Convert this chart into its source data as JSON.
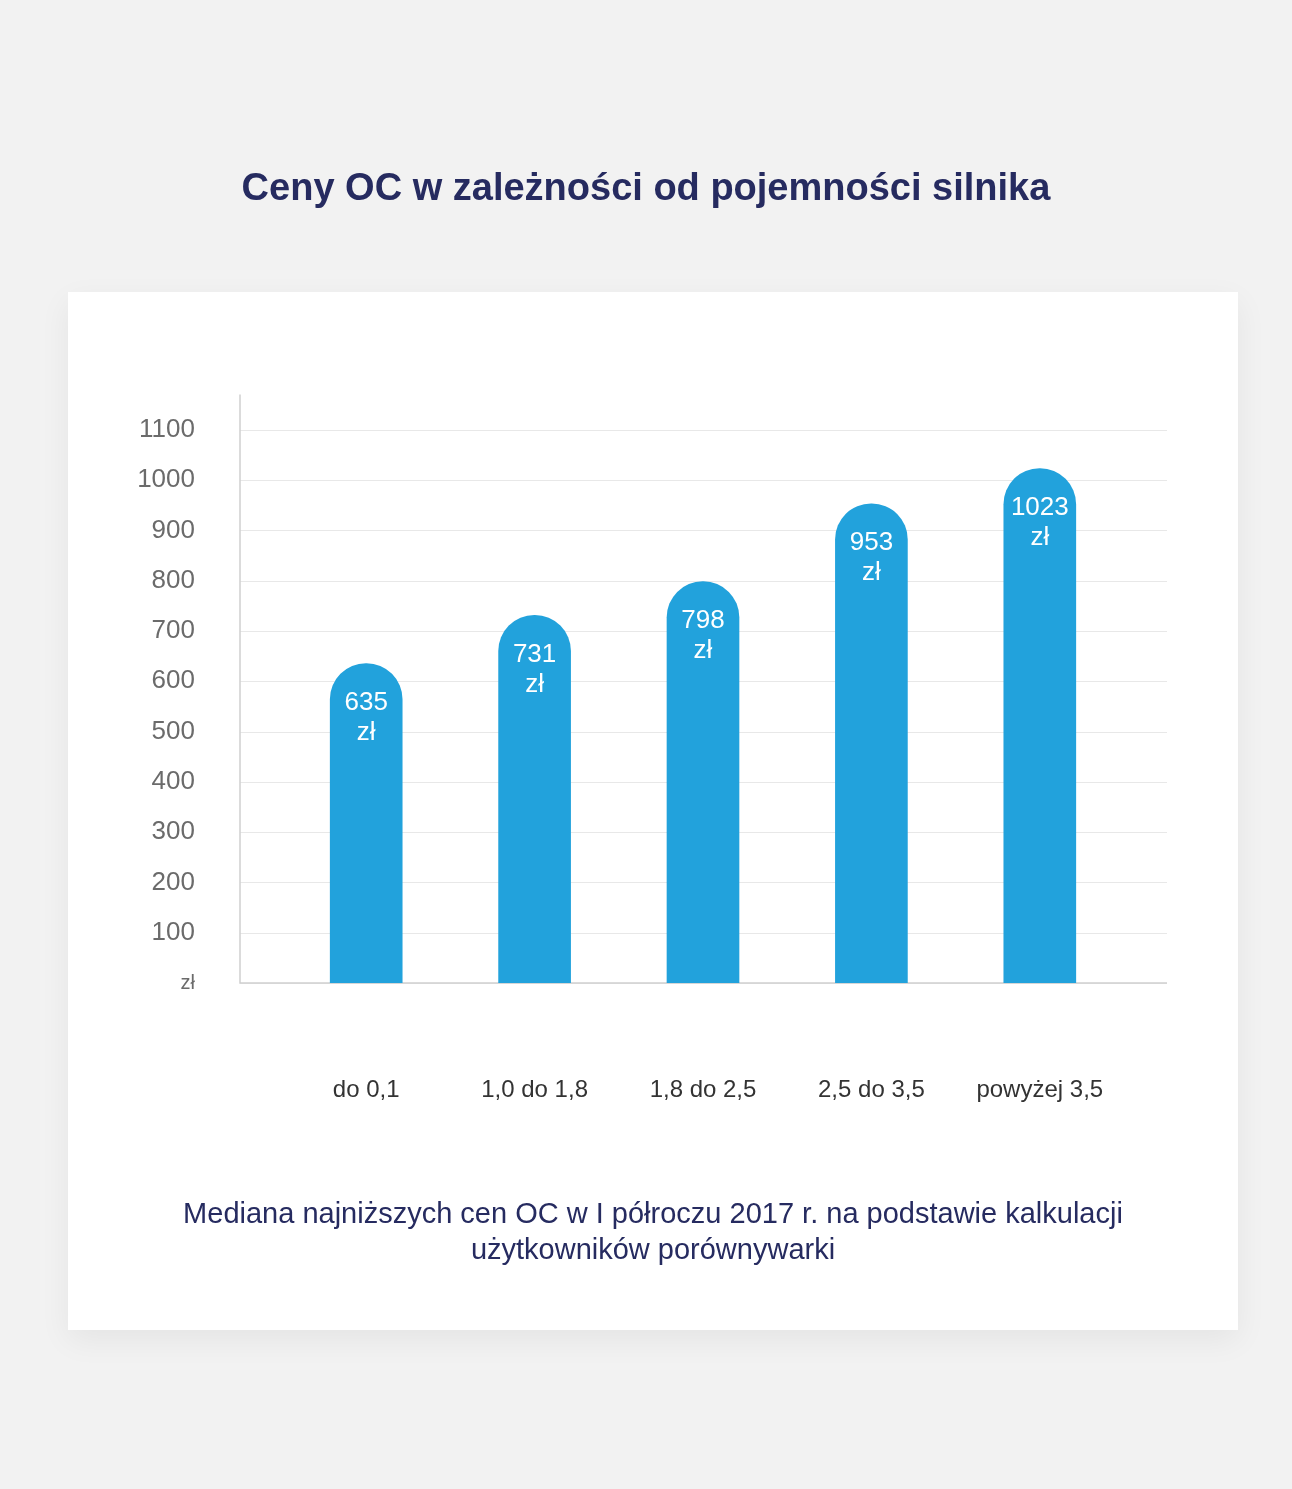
{
  "chart_data": {
    "type": "bar",
    "title": "Ceny OC w zależności od pojemności silnika",
    "categories": [
      "do 0,1",
      "1,0 do 1,8",
      "1,8 do 2,5",
      "2,5 do 3,5",
      "powyżej 3,5"
    ],
    "values": [
      635,
      731,
      798,
      953,
      1023
    ],
    "color": "#22a2dc",
    "value_labels": [
      "635 zł",
      "731 zł",
      "798 zł",
      "953 zł",
      "1023 zł"
    ],
    "ylim": [
      0,
      1170
    ],
    "yticks": [
      {
        "value": 0,
        "label": "zł"
      },
      100,
      200,
      300,
      400,
      500,
      600,
      700,
      800,
      900,
      1000,
      1100
    ],
    "grid": "y",
    "annotations": [
      "Mediana najniższych cen OC w I półroczu 2017 r. na podstawie kalkulacji użytkowników porównywarki"
    ]
  }
}
